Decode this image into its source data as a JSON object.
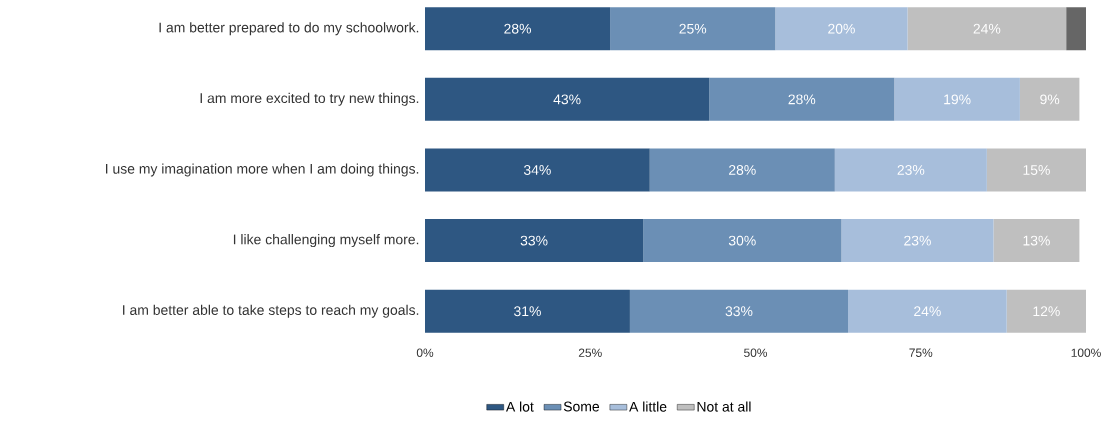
{
  "chart_data": {
    "type": "bar",
    "orientation": "horizontal",
    "stacked": true,
    "categories": [
      "I am better prepared to do my schoolwork.",
      "I am more excited to try new things.",
      "I use my imagination more when I am doing things.",
      "I like challenging myself more.",
      "I am better able to take steps to reach my goals."
    ],
    "series": [
      {
        "name": "A lot",
        "color": "#2e5782",
        "values": [
          28,
          43,
          34,
          33,
          31
        ],
        "value_labels": [
          "28%",
          "43%",
          "34%",
          "33%",
          "31%"
        ]
      },
      {
        "name": "Some",
        "color": "#6b8fb5",
        "values": [
          25,
          28,
          28,
          30,
          33
        ],
        "value_labels": [
          "25%",
          "28%",
          "28%",
          "30%",
          "33%"
        ]
      },
      {
        "name": "A little",
        "color": "#a7bedb",
        "values": [
          20,
          19,
          23,
          23,
          24
        ],
        "value_labels": [
          "20%",
          "19%",
          "23%",
          "23%",
          "24%"
        ]
      },
      {
        "name": "Not at all",
        "color": "#bfbfbf",
        "values": [
          24,
          9,
          15,
          13,
          12
        ],
        "value_labels": [
          "24%",
          "9%",
          "15%",
          "13%",
          "12%"
        ]
      },
      {
        "color": "#666666",
        "values": [
          3,
          null,
          null,
          null,
          null
        ]
      }
    ],
    "xlim": [
      0,
      100
    ],
    "xticks": [
      {
        "value": 0,
        "label": "0%"
      },
      {
        "value": 25,
        "label": "25%"
      },
      {
        "value": 50,
        "label": "50%"
      },
      {
        "value": 75,
        "label": "75%"
      },
      {
        "value": 100,
        "label": "100%"
      }
    ],
    "grid": false,
    "legend": "bottom"
  }
}
